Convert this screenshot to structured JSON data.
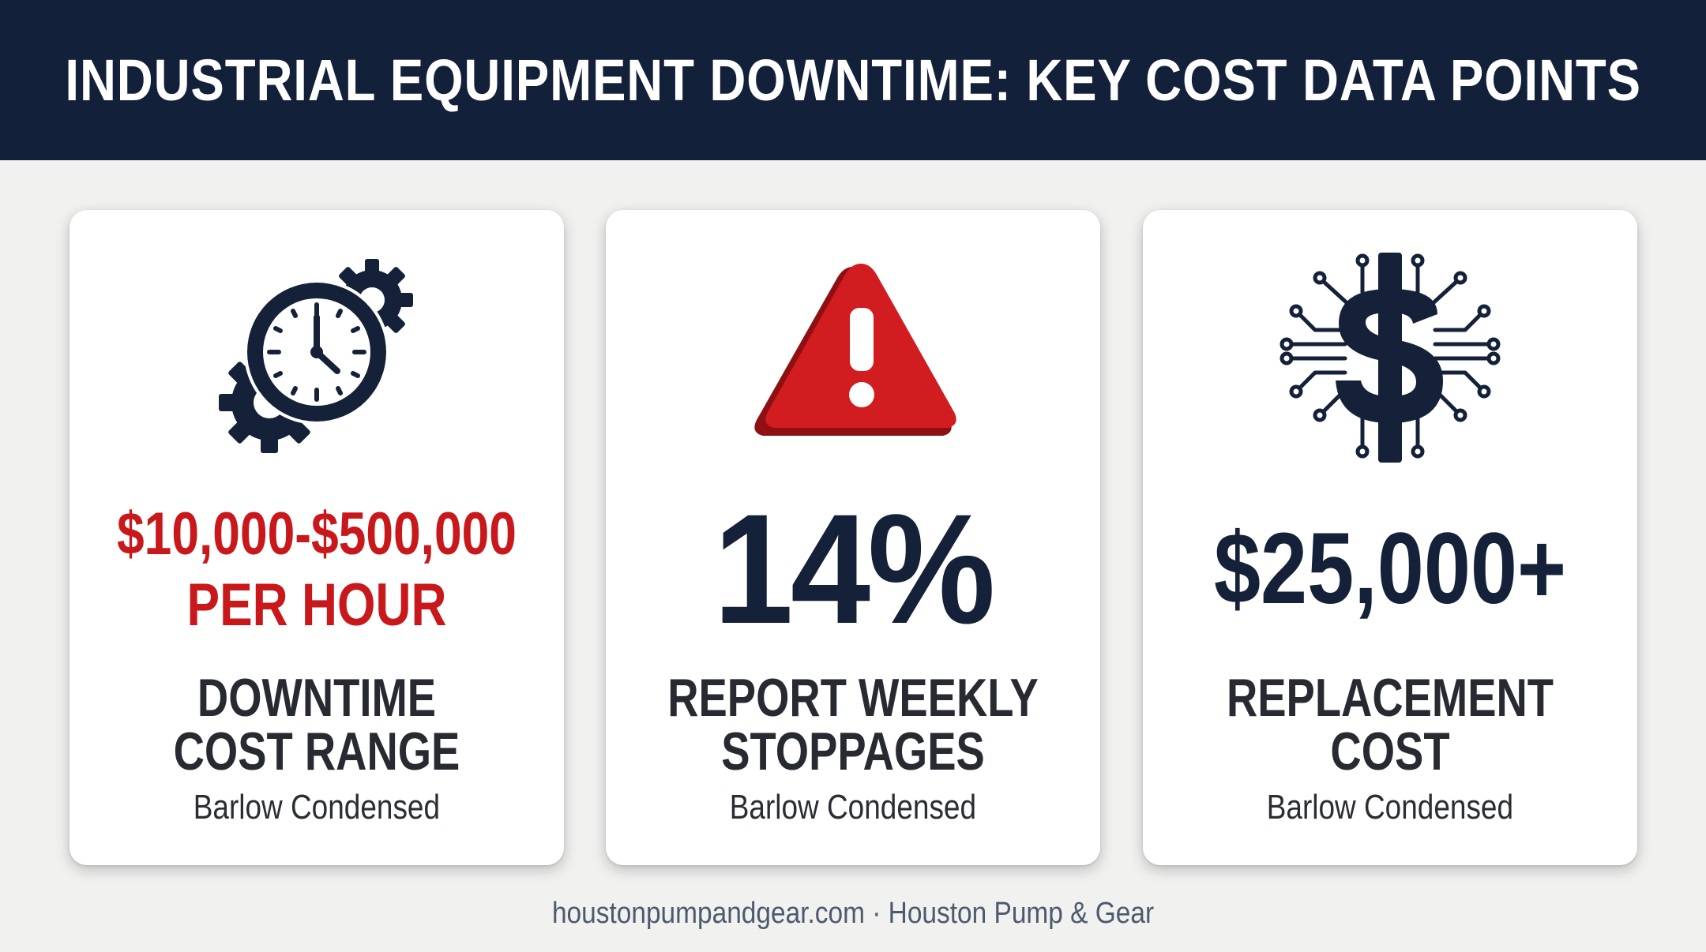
{
  "header": {
    "title": "INDUSTRIAL EQUIPMENT DOWNTIME: KEY COST DATA POINTS"
  },
  "cards": [
    {
      "icon": "clock-gears-icon",
      "value_lines": [
        "$10,000-$500,000",
        "PER HOUR"
      ],
      "label_lines": [
        "DOWNTIME",
        "COST RANGE"
      ],
      "sublabel": "Barlow Condensed"
    },
    {
      "icon": "warning-triangle-icon",
      "value_lines": [
        "14%"
      ],
      "label_lines": [
        "REPORT WEEKLY",
        "STOPPAGES"
      ],
      "sublabel": "Barlow Condensed"
    },
    {
      "icon": "dollar-circuit-icon",
      "value_lines": [
        "$25,000+"
      ],
      "label_lines": [
        "REPLACEMENT",
        "COST"
      ],
      "sublabel": "Barlow Condensed"
    }
  ],
  "footer": {
    "text": "houstonpumpandgear.com · Houston Pump & Gear"
  },
  "colors": {
    "header_bg": "#13203a",
    "accent_red": "#c8181b",
    "navy": "#152139",
    "page_bg": "#f1f1f0"
  }
}
